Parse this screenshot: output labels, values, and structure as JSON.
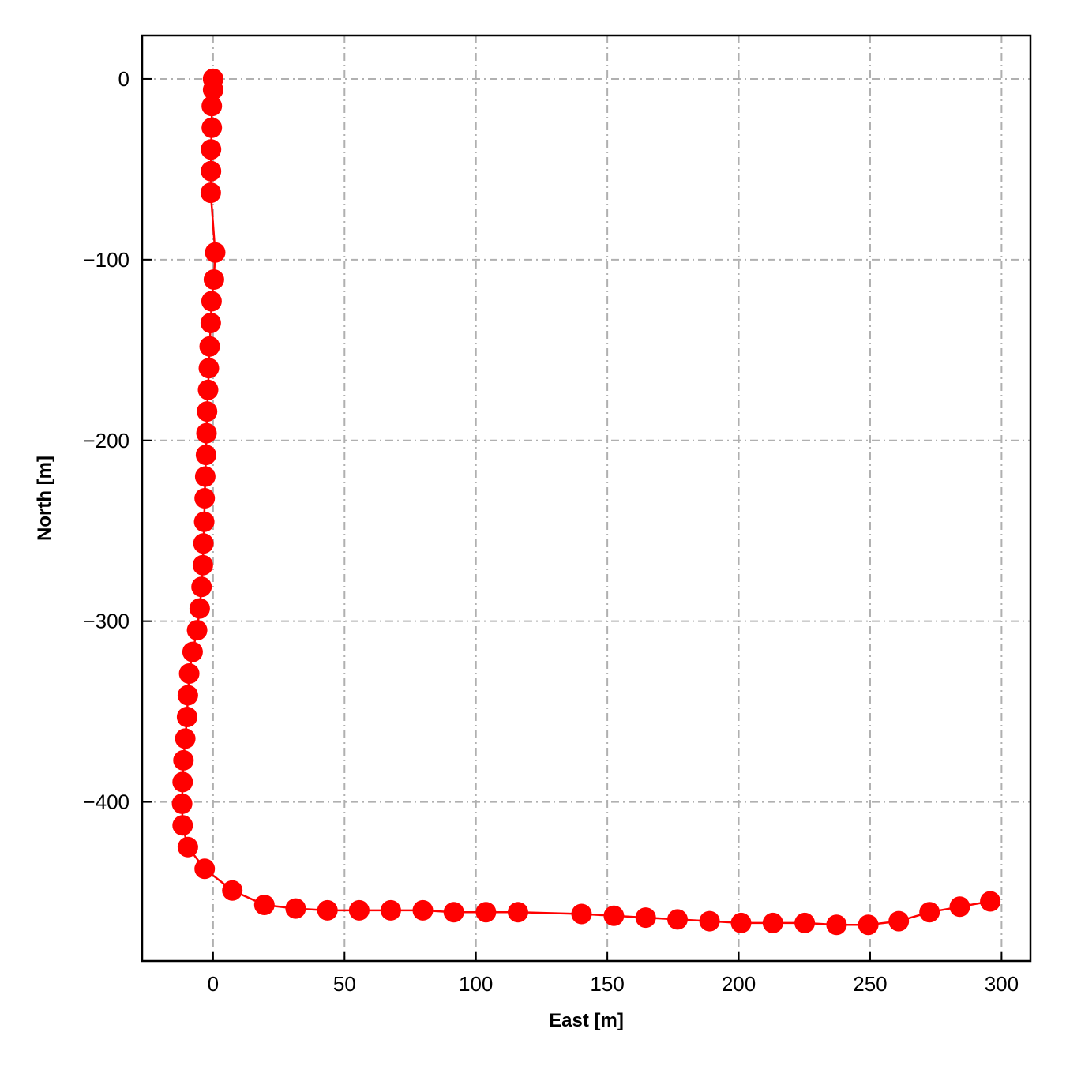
{
  "chart_data": {
    "type": "line",
    "title": "",
    "xlabel": "East [m]",
    "ylabel": "North [m]",
    "xlim": [
      -27,
      311
    ],
    "ylim": [
      -488,
      24
    ],
    "x_ticks": [
      0,
      50,
      100,
      150,
      200,
      250,
      300
    ],
    "y_ticks": [
      0,
      -100,
      -200,
      -300,
      -400
    ],
    "x_tick_labels": [
      "0",
      "50",
      "100",
      "150",
      "200",
      "250",
      "300"
    ],
    "y_tick_labels": [
      "0",
      "−100",
      "−200",
      "−300",
      "−400"
    ],
    "grid": true,
    "line_color": "#ff0000",
    "grid_color": "#b0b0b0",
    "series": [
      {
        "x": [
          0,
          0,
          0,
          -0.5,
          -0.5,
          -0.8,
          -0.8,
          -0.9,
          0.8,
          0.3,
          -0.6,
          -0.9,
          -1.3,
          -1.6,
          -1.9,
          -2.3,
          -2.5,
          -2.7,
          -3.0,
          -3.2,
          -3.4,
          -3.7,
          -3.9,
          -4.4,
          -5.1,
          -6.1,
          -7.8,
          -9.1,
          -9.6,
          -9.9,
          -10.6,
          -11.3,
          -11.6,
          -11.8,
          -11.6,
          -9.6,
          -3.2,
          7.3,
          19.5,
          31.4,
          43.5,
          55.6,
          67.6,
          79.8,
          91.6,
          103.8,
          116.0,
          140.2,
          152.5,
          164.6,
          176.7,
          188.9,
          200.9,
          213.0,
          225.1,
          237.2,
          249.3,
          260.9,
          272.6,
          284.1,
          295.7
        ],
        "y": [
          0,
          0,
          -6,
          -15,
          -27,
          -39,
          -51,
          -63,
          -96,
          -111,
          -123,
          -135,
          -148,
          -160,
          -172,
          -184,
          -196,
          -208,
          -220,
          -232,
          -245,
          -257,
          -269,
          -281,
          -293,
          -305,
          -317,
          -329,
          -341,
          -353,
          -365,
          -377,
          -389,
          -401,
          -413,
          -425,
          -437,
          -449,
          -457,
          -459,
          -460,
          -460,
          -460,
          -460,
          -461,
          -461,
          -461,
          -462,
          -463,
          -464,
          -465,
          -466,
          -467,
          -467,
          -467,
          -468,
          -468,
          -466,
          -461,
          -458,
          -455
        ]
      }
    ]
  }
}
